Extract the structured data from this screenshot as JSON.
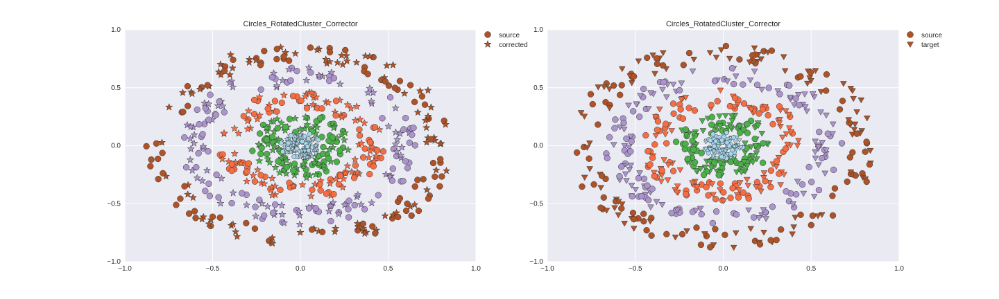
{
  "chart_data": [
    {
      "type": "scatter",
      "title": "Circles_RotatedCluster_Corrector",
      "xlabel": "",
      "ylabel": "",
      "xlim": [
        -1.0,
        1.0
      ],
      "ylim": [
        -1.0,
        1.0
      ],
      "x_ticks": [
        "−1.0",
        "−0.5",
        "0.0",
        "0.5",
        "1.0"
      ],
      "y_ticks": [
        "1.0",
        "0.5",
        "0.0",
        "−0.5",
        "−1.0"
      ],
      "grid": true,
      "legend_placement": "outside-upper-right",
      "legend": [
        {
          "label": "source",
          "marker": "circle"
        },
        {
          "label": "corrected",
          "marker": "star"
        }
      ],
      "rings": [
        {
          "ring": 1,
          "radius": 0.07,
          "color": "#a6d6ea",
          "point_count": 110
        },
        {
          "ring": 2,
          "radius": 0.2,
          "color": "#4daf4a",
          "point_count": 130
        },
        {
          "ring": 3,
          "radius": 0.4,
          "color": "#f46d43",
          "point_count": 150
        },
        {
          "ring": 4,
          "radius": 0.6,
          "color": "#ab93cb",
          "point_count": 160
        },
        {
          "ring": 5,
          "radius": 0.8,
          "color": "#ad5327",
          "point_count": 170
        }
      ],
      "series": [
        {
          "name": "source",
          "marker": "circle",
          "description_points": "concentric rings, radius ~0.07 to ~0.85"
        },
        {
          "name": "corrected",
          "marker": "star",
          "description_points": "concentric rings matching source radii"
        }
      ]
    },
    {
      "type": "scatter",
      "title": "Circles_RotatedCluster_Corrector",
      "xlabel": "",
      "ylabel": "",
      "xlim": [
        -1.0,
        1.0
      ],
      "ylim": [
        -1.0,
        1.0
      ],
      "x_ticks": [
        "−1.0",
        "−0.5",
        "0.0",
        "0.5",
        "1.0"
      ],
      "y_ticks": [
        "1.0",
        "0.5",
        "0.0",
        "−0.5",
        "−1.0"
      ],
      "grid": true,
      "legend_placement": "outside-upper-right",
      "legend": [
        {
          "label": "source",
          "marker": "circle"
        },
        {
          "label": "target",
          "marker": "triangle-down"
        }
      ],
      "rings": [
        {
          "ring": 1,
          "radius": 0.07,
          "color": "#a6d6ea",
          "point_count": 110
        },
        {
          "ring": 2,
          "radius": 0.2,
          "color": "#4daf4a",
          "point_count": 130
        },
        {
          "ring": 3,
          "radius": 0.4,
          "color": "#f46d43",
          "point_count": 150
        },
        {
          "ring": 4,
          "radius": 0.6,
          "color": "#ab93cb",
          "point_count": 160
        },
        {
          "ring": 5,
          "radius": 0.8,
          "color": "#ad5327",
          "point_count": 170
        }
      ],
      "series": [
        {
          "name": "source",
          "marker": "circle",
          "description_points": "concentric rings, radius ~0.07 to ~0.85"
        },
        {
          "name": "target",
          "marker": "triangle-down",
          "description_points": "concentric rings matching source radii"
        }
      ]
    }
  ],
  "colors": {
    "plot_background": "#eaeaf2",
    "grid": "#ffffff",
    "marker_edge": "#333333",
    "legend_marker": "#ad5327"
  }
}
